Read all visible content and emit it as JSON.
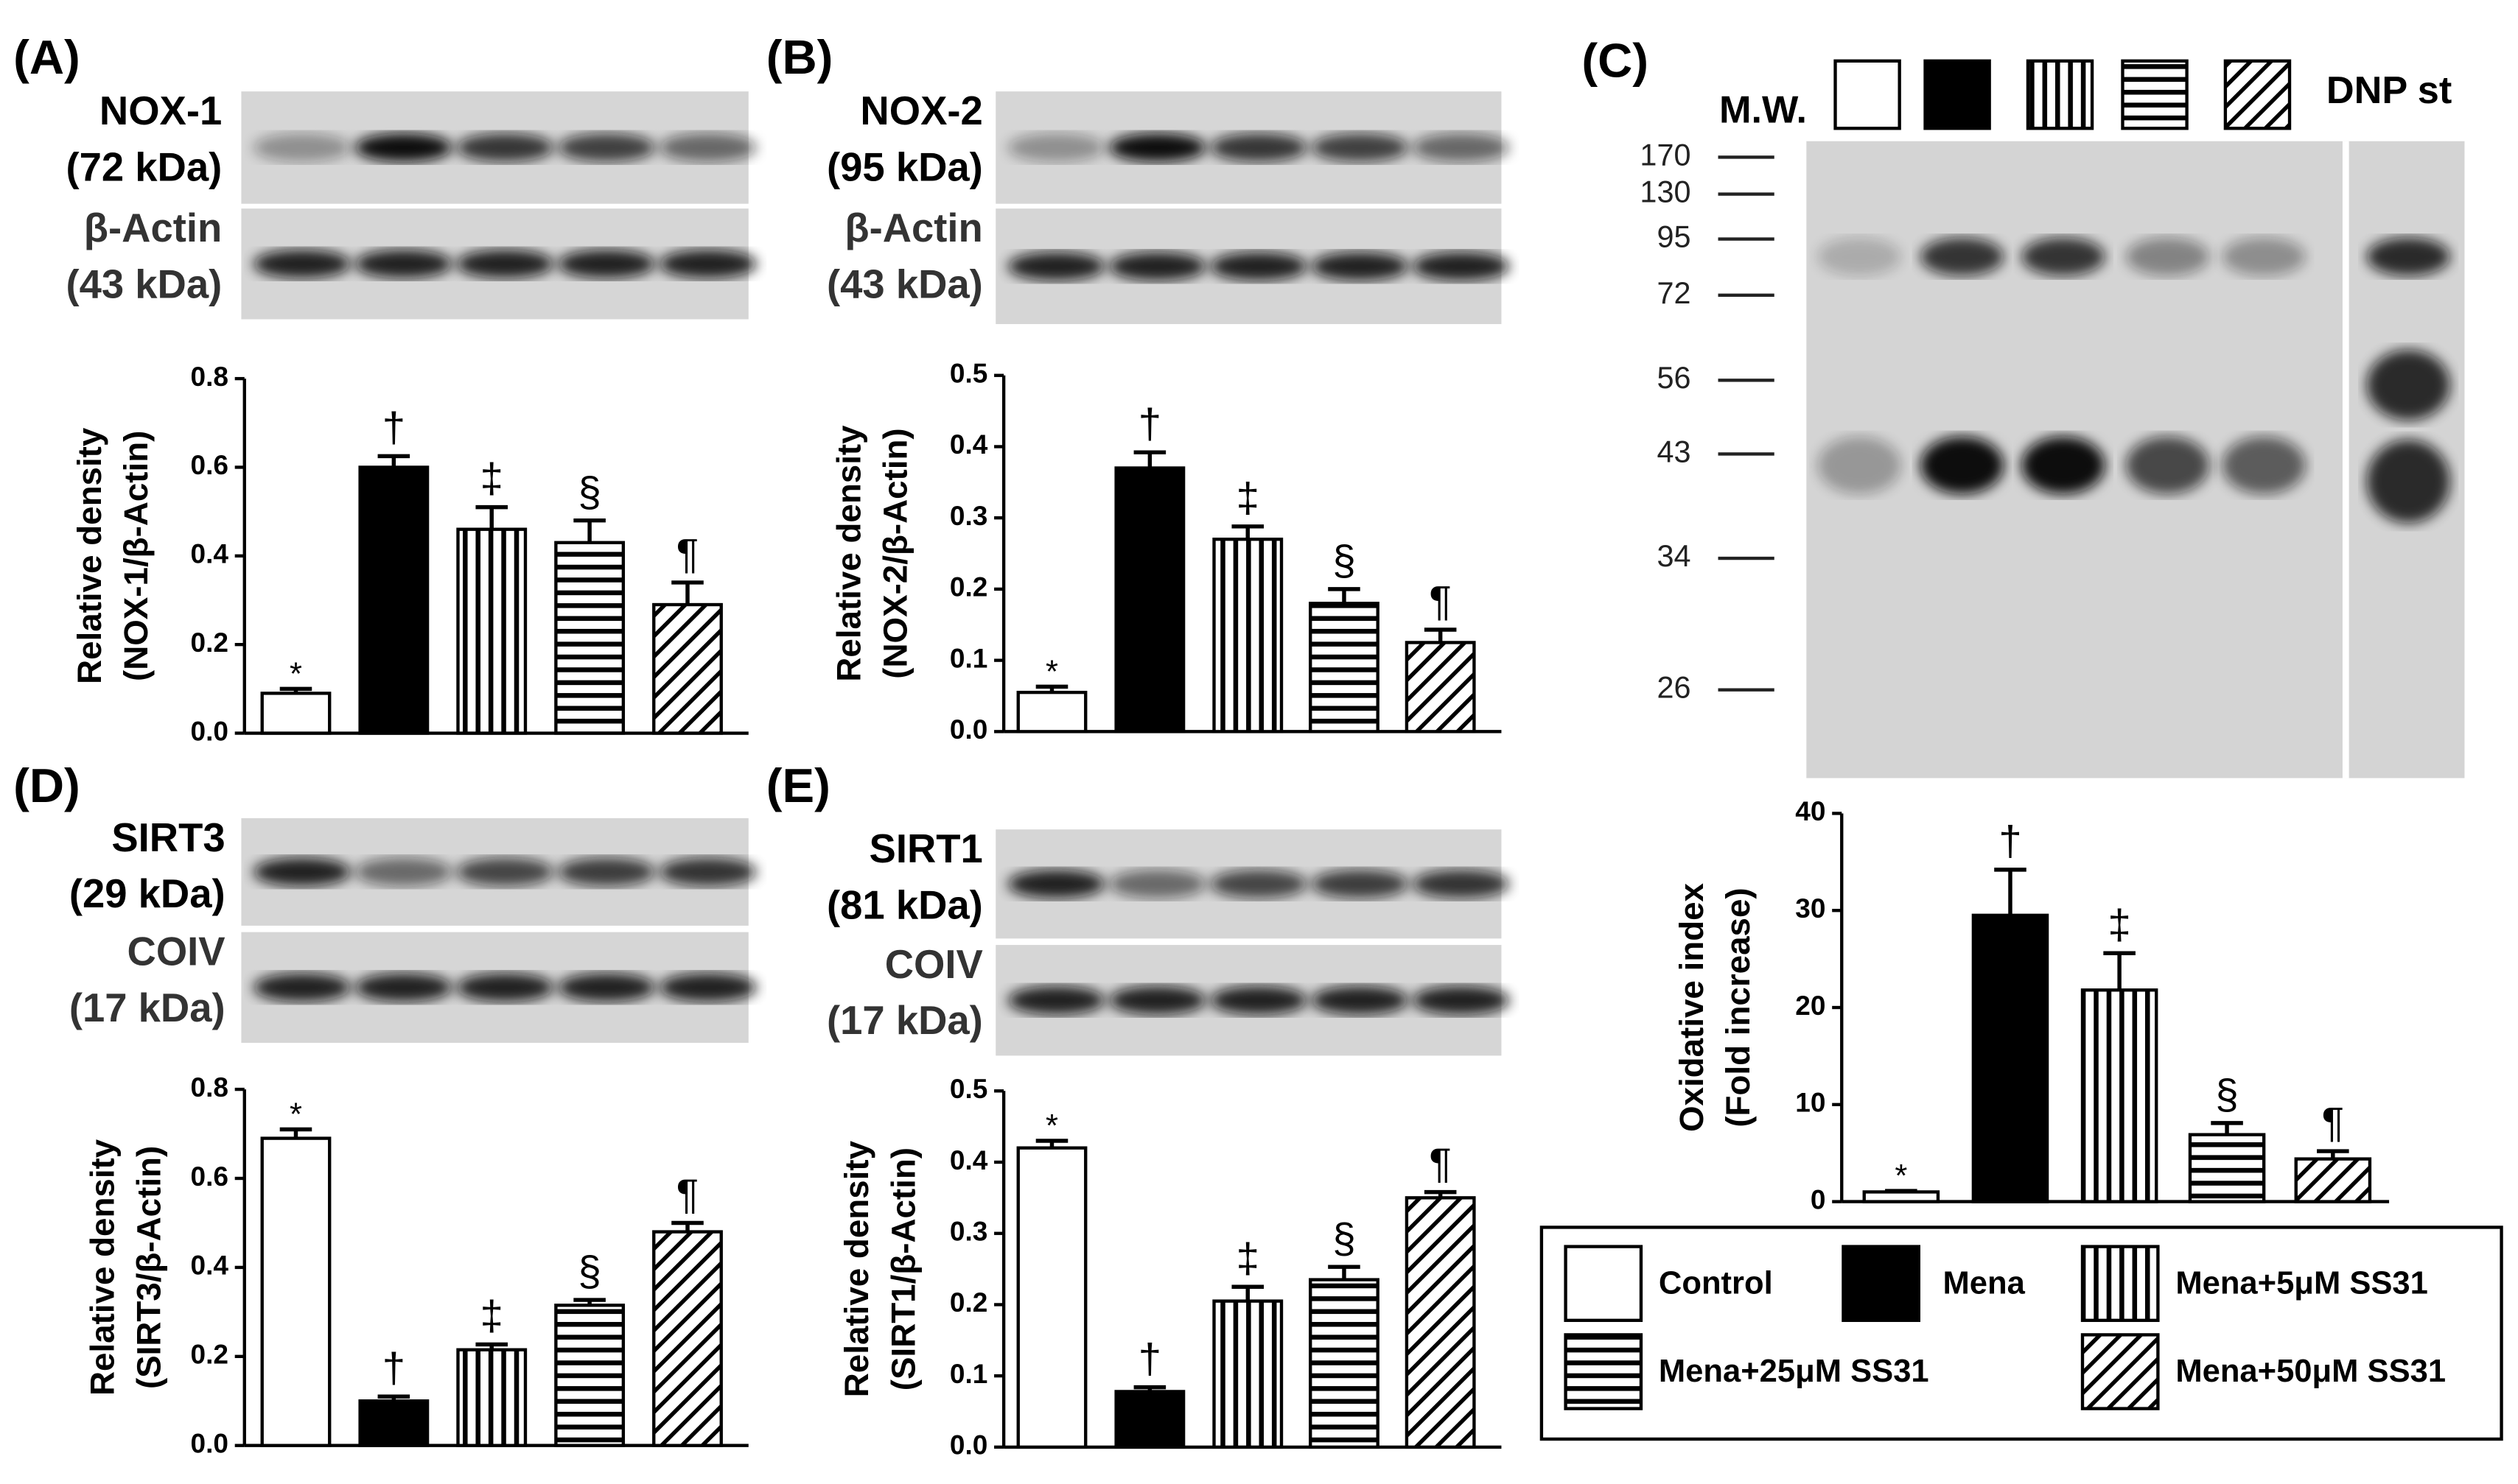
{
  "legend": [
    {
      "name": "Control",
      "pattern": "white"
    },
    {
      "name": "Mena",
      "pattern": "black"
    },
    {
      "name": "Mena+5μM SS31",
      "pattern": "vertical"
    },
    {
      "name": "Mena+25μM SS31",
      "pattern": "horizontal"
    },
    {
      "name": "Mena+50μM SS31",
      "pattern": "diagonal"
    }
  ],
  "chart_data": [
    {
      "type": "bar",
      "panel": "(A)",
      "blots": [
        [
          "NOX-1",
          "(72 kDa)"
        ],
        [
          "β-Actin",
          "(43 kDa)"
        ]
      ],
      "ylabel": [
        "Relative density",
        "(NOX-1/β-Actin)"
      ],
      "values": [
        0.09,
        0.6,
        0.46,
        0.43,
        0.29
      ],
      "errors": [
        0.01,
        0.025,
        0.05,
        0.05,
        0.05
      ],
      "annotations": [
        "*",
        "†",
        "‡",
        "§",
        "¶"
      ],
      "ylim": [
        0,
        0.8
      ],
      "yticks": [
        {
          "value": 0,
          "label": "0.0"
        },
        0.2,
        0.4,
        0.6,
        0.8
      ]
    },
    {
      "type": "bar",
      "panel": "(B)",
      "blots": [
        [
          "NOX-2",
          "(95 kDa)"
        ],
        [
          "β-Actin",
          "(43 kDa)"
        ]
      ],
      "ylabel": [
        "Relative density",
        "(NOX-2/β-Actin)"
      ],
      "values": [
        0.055,
        0.37,
        0.27,
        0.18,
        0.125
      ],
      "errors": [
        0.008,
        0.022,
        0.018,
        0.02,
        0.018
      ],
      "annotations": [
        "*",
        "†",
        "‡",
        "§",
        "¶"
      ],
      "ylim": [
        0,
        0.5
      ],
      "yticks": [
        {
          "value": 0,
          "label": "0.0"
        },
        0.1,
        0.2,
        0.3,
        0.4,
        0.5
      ]
    },
    {
      "type": "bar",
      "panel": "(C)",
      "mw_label": "M.W.",
      "mw_markers": [
        170,
        130,
        95,
        72,
        56,
        43,
        34,
        26
      ],
      "standard_label": "DNP st",
      "ylabel": [
        "Oxidative index",
        "(Fold increase)"
      ],
      "values": [
        1,
        29.5,
        21.8,
        6.9,
        4.4
      ],
      "errors": [
        0.1,
        4.7,
        3.8,
        1.2,
        0.8
      ],
      "annotations": [
        "*",
        "†",
        "‡",
        "§",
        "¶"
      ],
      "ylim": [
        0,
        40
      ],
      "yticks": [
        0,
        10,
        20,
        30,
        40
      ]
    },
    {
      "type": "bar",
      "panel": "(D)",
      "blots": [
        [
          "SIRT3",
          "(29 kDa)"
        ],
        [
          "COIV",
          "(17 kDa)"
        ]
      ],
      "ylabel": [
        "Relative density",
        "(SIRT3/β-Actin)"
      ],
      "values": [
        0.69,
        0.1,
        0.215,
        0.315,
        0.48
      ],
      "errors": [
        0.02,
        0.01,
        0.012,
        0.012,
        0.02
      ],
      "annotations": [
        "*",
        "†",
        "‡",
        "§",
        "¶"
      ],
      "ylim": [
        0,
        0.8
      ],
      "yticks": [
        {
          "value": 0,
          "label": "0.0"
        },
        0.2,
        0.4,
        0.6,
        0.8
      ]
    },
    {
      "type": "bar",
      "panel": "(E)",
      "blots": [
        [
          "SIRT1",
          "(81 kDa)"
        ],
        [
          "COIV",
          "(17 kDa)"
        ]
      ],
      "ylabel": [
        "Relative density",
        "(SIRT1/β-Actin)"
      ],
      "values": [
        0.42,
        0.078,
        0.205,
        0.235,
        0.35
      ],
      "errors": [
        0.01,
        0.006,
        0.02,
        0.018,
        0.008
      ],
      "annotations": [
        "*",
        "†",
        "‡",
        "§",
        "¶"
      ],
      "ylim": [
        0,
        0.5
      ],
      "yticks": [
        {
          "value": 0,
          "label": "0.0"
        },
        0.1,
        0.2,
        0.3,
        0.4,
        0.5
      ]
    }
  ]
}
